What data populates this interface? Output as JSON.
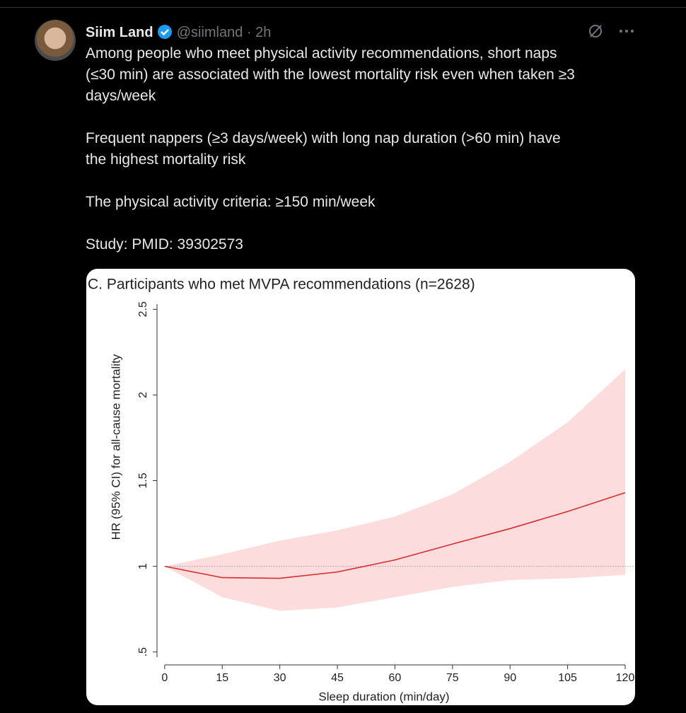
{
  "tweet": {
    "name": "Siim Land",
    "handle": "@siimland",
    "separator": "·",
    "time": "2h",
    "paragraphs": [
      [
        "Among people who meet physical activity recommendations, short naps",
        "(≤30 min) are associated with the lowest mortality risk even when taken ≥3",
        "days/week"
      ],
      [
        "Frequent nappers (≥3 days/week) with long nap duration (>60 min) have",
        "the highest mortality risk"
      ],
      [
        "The physical activity criteria: ≥150 min/week"
      ],
      [
        "Study: PMID: 39302573"
      ]
    ]
  },
  "chart_data": {
    "type": "line",
    "title": "C. Participants who met MVPA recommendations (n=2628)",
    "x_label": "Sleep duration (min/day)",
    "y_label": "HR (95% CI) for all-cause mortality",
    "x": [
      0,
      15,
      30,
      45,
      60,
      75,
      90,
      105,
      120
    ],
    "values": [
      1.0,
      0.934,
      0.93,
      0.967,
      1.037,
      1.13,
      1.22,
      1.32,
      1.43
    ],
    "lower": [
      1.0,
      0.82,
      0.74,
      0.76,
      0.82,
      0.88,
      0.92,
      0.93,
      0.95
    ],
    "upper": [
      1.0,
      1.07,
      1.15,
      1.21,
      1.29,
      1.42,
      1.61,
      1.84,
      2.15
    ],
    "color": "#d62d2d",
    "band_color": "#fcdcdc",
    "reference_line": 1,
    "xlim": [
      -2,
      120
    ],
    "xticks": [
      0,
      15,
      30,
      45,
      60,
      75,
      90,
      105,
      120
    ],
    "ylim": [
      0.47,
      2.53
    ],
    "yticks": [
      {
        "value": 0.5,
        "label": ".5"
      },
      1,
      1.5,
      2,
      2.5
    ]
  }
}
